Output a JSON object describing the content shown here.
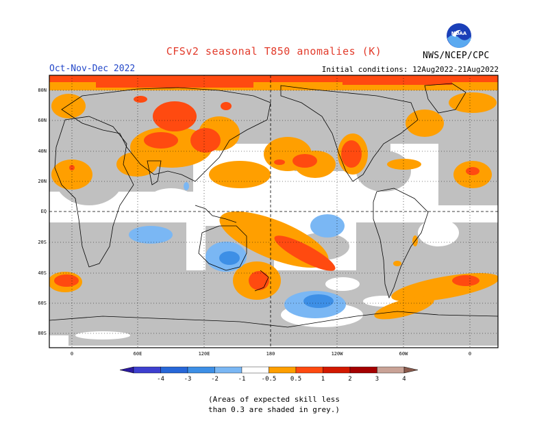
{
  "header": {
    "title": "CFSv2 seasonal T850 anomalies (K)",
    "period": "Oct-Nov-Dec 2022",
    "initial_conditions": "Initial conditions: 12Aug2022-21Aug2022",
    "org": "NWS/NCEP/CPC",
    "logo_text": "NOAA"
  },
  "map": {
    "lon_ticks": [
      "0",
      "60E",
      "120E",
      "180",
      "120W",
      "60W",
      "0"
    ],
    "lat_ticks": [
      "80N",
      "60N",
      "40N",
      "20N",
      "EQ",
      "20S",
      "40S",
      "60S",
      "80S"
    ]
  },
  "colorbar": {
    "labels": [
      "-4",
      "-3",
      "-2",
      "-1",
      "-0.5",
      "0.5",
      "1",
      "2",
      "3",
      "4"
    ],
    "colors": [
      "#2c1aa0",
      "#3d3fcf",
      "#2767d8",
      "#3d8fe6",
      "#7ab7f4",
      "#ffffff",
      "#ff9f00",
      "#ff4a10",
      "#d21800",
      "#a40000",
      "#c9a296",
      "#8a5b4d"
    ]
  },
  "footer": {
    "note_line1": "(Areas of expected skill less",
    "note_line2": "than 0.3 are shaded in grey.)"
  },
  "legend_colors": {
    "grey": "#c0c0c0",
    "orange": "#ff9f00",
    "red": "#ff4a10",
    "blue_light": "#7ab7f4",
    "blue": "#3d8fe6"
  }
}
